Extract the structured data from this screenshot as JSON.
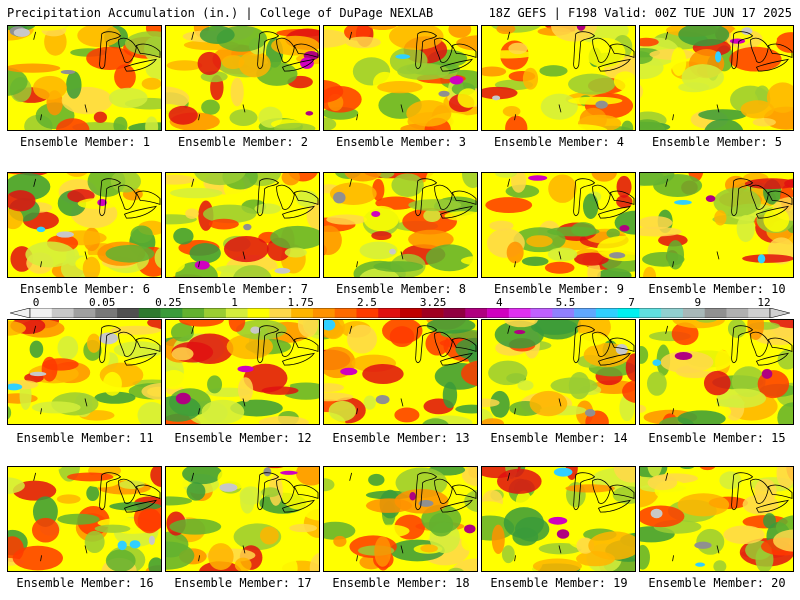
{
  "header": {
    "title_left": "Precipitation Accumulation (in.) | College of DuPage NEXLAB",
    "title_right": "18Z GEFS | F198 Valid: 00Z TUE JUN 17 2025"
  },
  "colorbar": {
    "labels": [
      "0",
      "0.05",
      "0.25",
      "1",
      "1.75",
      "2.5",
      "3.25",
      "4",
      "5.5",
      "7",
      "9",
      "12"
    ],
    "colors": [
      "#f0f0f0",
      "#c8c8c8",
      "#a0a0a0",
      "#787878",
      "#505050",
      "#2f7a2f",
      "#3a9b3a",
      "#62b12f",
      "#9acd32",
      "#d4ee3c",
      "#ffff00",
      "#ffd84a",
      "#ffb400",
      "#ff9200",
      "#ff6a00",
      "#ff3a00",
      "#e01010",
      "#c00000",
      "#a00020",
      "#900040",
      "#b00080",
      "#d000c0",
      "#e030f0",
      "#c060ff",
      "#9080ff",
      "#60a8ff",
      "#30d0ff",
      "#00f0f0",
      "#60e0e0",
      "#90d0d0",
      "#a8b8b8",
      "#909090",
      "#b0b0b0",
      "#d0d0d0"
    ]
  },
  "panels": [
    {
      "label": "Ensemble Member: 1"
    },
    {
      "label": "Ensemble Member: 2"
    },
    {
      "label": "Ensemble Member: 3"
    },
    {
      "label": "Ensemble Member: 4"
    },
    {
      "label": "Ensemble Member: 5"
    },
    {
      "label": "Ensemble Member: 6"
    },
    {
      "label": "Ensemble Member: 7"
    },
    {
      "label": "Ensemble Member: 8"
    },
    {
      "label": "Ensemble Member: 9"
    },
    {
      "label": "Ensemble Member: 10"
    },
    {
      "label": "Ensemble Member: 11"
    },
    {
      "label": "Ensemble Member: 12"
    },
    {
      "label": "Ensemble Member: 13"
    },
    {
      "label": "Ensemble Member: 14"
    },
    {
      "label": "Ensemble Member: 15"
    },
    {
      "label": "Ensemble Member: 16"
    },
    {
      "label": "Ensemble Member: 17"
    },
    {
      "label": "Ensemble Member: 18"
    },
    {
      "label": "Ensemble Member: 19"
    },
    {
      "label": "Ensemble Member: 20"
    }
  ]
}
